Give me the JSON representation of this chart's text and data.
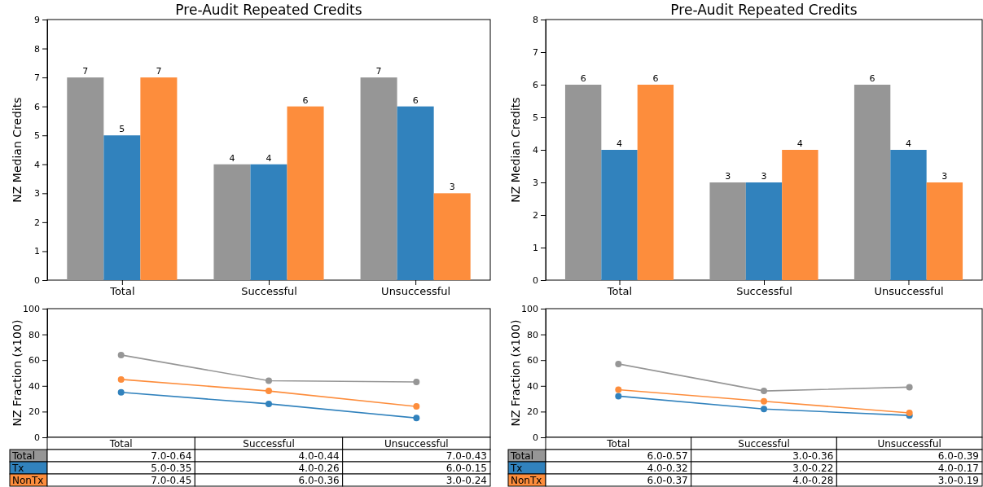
{
  "chart_data": [
    {
      "type": "bar",
      "title": "Pre-Audit Repeated Credits",
      "ylabel": "NZ Median Credits",
      "categories": [
        "Total",
        "Successful",
        "Unsuccessful"
      ],
      "ylim": [
        0,
        9
      ],
      "yticks": [
        0,
        1,
        2,
        3,
        4,
        5,
        6,
        7,
        8,
        9
      ],
      "data_labels": true,
      "series": [
        {
          "color": "#969696",
          "values": [
            7,
            4,
            7
          ]
        },
        {
          "color": "#3182bd",
          "values": [
            5,
            4,
            6
          ]
        },
        {
          "color": "#fd8d3c",
          "values": [
            7,
            6,
            3
          ]
        }
      ]
    },
    {
      "type": "bar",
      "title": "Pre-Audit Repeated Credits",
      "ylabel": "NZ Median Credits",
      "categories": [
        "Total",
        "Successful",
        "Unsuccessful"
      ],
      "ylim": [
        0,
        8
      ],
      "yticks": [
        0,
        1,
        2,
        3,
        4,
        5,
        6,
        7,
        8
      ],
      "data_labels": true,
      "series": [
        {
          "color": "#969696",
          "values": [
            6,
            3,
            6
          ]
        },
        {
          "color": "#3182bd",
          "values": [
            4,
            3,
            4
          ]
        },
        {
          "color": "#fd8d3c",
          "values": [
            6,
            4,
            3
          ]
        }
      ]
    },
    {
      "type": "line",
      "ylabel": "NZ Fraction (x100)",
      "categories": [
        "Total",
        "Successful",
        "Unsuccessful"
      ],
      "ylim": [
        0,
        100
      ],
      "yticks": [
        0,
        20,
        40,
        60,
        80,
        100
      ],
      "marker": "circle",
      "series": [
        {
          "name": "Total",
          "color": "#969696",
          "values": [
            64,
            44,
            43
          ],
          "value_labels": [
            "7.0-0.64",
            "4.0-0.44",
            "7.0-0.43"
          ]
        },
        {
          "name": "Tx",
          "color": "#3182bd",
          "values": [
            35,
            26,
            15
          ],
          "value_labels": [
            "5.0-0.35",
            "4.0-0.26",
            "6.0-0.15"
          ]
        },
        {
          "name": "NonTx",
          "color": "#fd8d3c",
          "values": [
            45,
            36,
            24
          ],
          "value_labels": [
            "7.0-0.45",
            "6.0-0.36",
            "3.0-0.24"
          ]
        }
      ]
    },
    {
      "type": "line",
      "ylabel": "NZ Fraction (x100)",
      "categories": [
        "Total",
        "Successful",
        "Unsuccessful"
      ],
      "ylim": [
        0,
        100
      ],
      "yticks": [
        0,
        20,
        40,
        60,
        80,
        100
      ],
      "marker": "circle",
      "series": [
        {
          "name": "Total",
          "color": "#969696",
          "values": [
            57,
            36,
            39
          ],
          "value_labels": [
            "6.0-0.57",
            "3.0-0.36",
            "6.0-0.39"
          ]
        },
        {
          "name": "Tx",
          "color": "#3182bd",
          "values": [
            32,
            22,
            17
          ],
          "value_labels": [
            "4.0-0.32",
            "3.0-0.22",
            "4.0-0.17"
          ]
        },
        {
          "name": "NonTx",
          "color": "#fd8d3c",
          "values": [
            37,
            28,
            19
          ],
          "value_labels": [
            "6.0-0.37",
            "4.0-0.28",
            "3.0-0.19"
          ]
        }
      ]
    }
  ]
}
